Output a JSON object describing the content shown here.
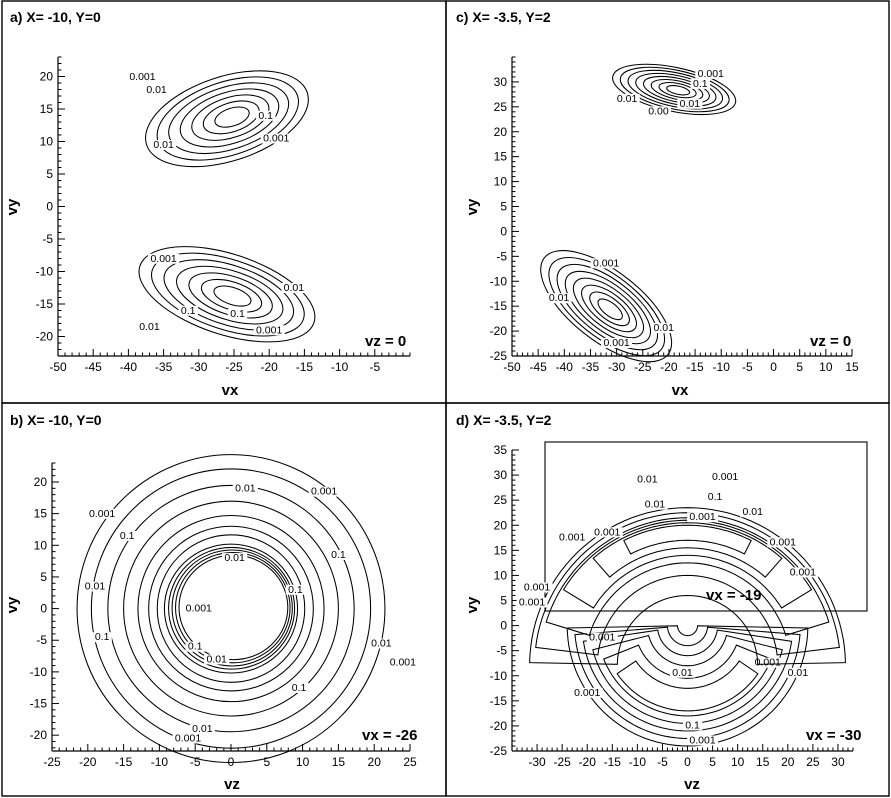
{
  "chart_data": [
    {
      "id": "a",
      "type": "contour",
      "title": "a) X= -10, Y=0",
      "xlabel": "vx",
      "ylabel": "vy",
      "xlim": [
        -50,
        0
      ],
      "ylim": [
        -23,
        23
      ],
      "xticks": [
        -50,
        -45,
        -40,
        -35,
        -30,
        -25,
        -20,
        -15,
        -10,
        -5
      ],
      "yticks": [
        -20,
        -15,
        -10,
        -5,
        0,
        5,
        10,
        15,
        20
      ],
      "annotation": "vz = 0",
      "contour_levels": [
        0.001,
        0.01,
        0.1
      ],
      "lobes": [
        {
          "cx": -26,
          "cy": 13.5,
          "rx": 12,
          "ry": 6.5,
          "tilt_deg": 18
        },
        {
          "cx": -26,
          "cy": -13.5,
          "rx": 13,
          "ry": 6.2,
          "tilt_deg": -18
        }
      ],
      "contour_labels": [
        {
          "text": "0.001",
          "x": -38,
          "y": 19.5
        },
        {
          "text": "0.01",
          "x": -36,
          "y": 17.5
        },
        {
          "text": "0.1",
          "x": -20.5,
          "y": 13.5
        },
        {
          "text": "0.01",
          "x": -35,
          "y": 9
        },
        {
          "text": "0.001",
          "x": -19,
          "y": 10
        },
        {
          "text": "0.001",
          "x": -35,
          "y": -8.5
        },
        {
          "text": "0.01",
          "x": -16.5,
          "y": -13
        },
        {
          "text": "0.1",
          "x": -31.5,
          "y": -16.5
        },
        {
          "text": "0.1",
          "x": -24.5,
          "y": -17
        },
        {
          "text": "0.01",
          "x": -37,
          "y": -19
        },
        {
          "text": "0.001",
          "x": -20,
          "y": -19.5
        }
      ]
    },
    {
      "id": "c",
      "type": "contour",
      "title": "c) X= -3.5, Y=2",
      "xlabel": "vx",
      "ylabel": "vy",
      "xlim": [
        -50,
        15
      ],
      "ylim": [
        -25,
        35
      ],
      "xticks": [
        -50,
        -45,
        -40,
        -35,
        -30,
        -25,
        -20,
        -15,
        -10,
        -5,
        0,
        5,
        10,
        15
      ],
      "yticks": [
        -25,
        -20,
        -15,
        -10,
        -5,
        0,
        5,
        10,
        15,
        20,
        25,
        30
      ],
      "annotation": "vz = 0",
      "contour_levels": [
        0.001,
        0.01,
        0.1
      ],
      "lobes": [
        {
          "cx": -19,
          "cy": 28.5,
          "rx": 12,
          "ry": 4.4,
          "tilt_deg": -12
        },
        {
          "cx": -32,
          "cy": -15,
          "rx": 15,
          "ry": 7,
          "tilt_deg": -38
        }
      ],
      "contour_labels": [
        {
          "text": "0.001",
          "x": -12,
          "y": 31
        },
        {
          "text": "0.1",
          "x": -14,
          "y": 29
        },
        {
          "text": "0.01",
          "x": -28,
          "y": 26
        },
        {
          "text": "0.00",
          "x": -22,
          "y": 23.5
        },
        {
          "text": "0.01",
          "x": -16,
          "y": 25
        },
        {
          "text": "0.001",
          "x": -32,
          "y": -7
        },
        {
          "text": "0.01",
          "x": -41,
          "y": -14
        },
        {
          "text": "0.01",
          "x": -21,
          "y": -20
        },
        {
          "text": "0.001",
          "x": -30,
          "y": -23
        }
      ]
    },
    {
      "id": "b",
      "type": "contour",
      "title": "b) X= -10, Y=0",
      "xlabel": "vz",
      "ylabel": "vy",
      "xlim": [
        -25,
        25
      ],
      "ylim": [
        -22.5,
        23
      ],
      "xticks": [
        -25,
        -20,
        -15,
        -10,
        -5,
        0,
        5,
        10,
        15,
        20,
        25
      ],
      "yticks": [
        -20,
        -15,
        -10,
        -5,
        0,
        5,
        10,
        15,
        20
      ],
      "annotation": "vx = -26",
      "contour_levels": [
        0.001,
        0.01,
        0.1
      ],
      "rings": [
        {
          "cx": 0,
          "cy": 0,
          "r_inner": 8.5,
          "r_outer": 21.5
        }
      ],
      "contour_labels": [
        {
          "text": "0.01",
          "x": 2,
          "y": 18.5
        },
        {
          "text": "0.001",
          "x": 13,
          "y": 18
        },
        {
          "text": "0.001",
          "x": -18,
          "y": 14.5
        },
        {
          "text": "0.1",
          "x": -14.5,
          "y": 11
        },
        {
          "text": "0.1",
          "x": 15,
          "y": 8
        },
        {
          "text": "0.01",
          "x": 0.5,
          "y": 7.5
        },
        {
          "text": "0.1",
          "x": 9,
          "y": 2.5
        },
        {
          "text": "0.01",
          "x": -19,
          "y": 3
        },
        {
          "text": "0.001",
          "x": -4.5,
          "y": -0.5
        },
        {
          "text": "0.1",
          "x": -18,
          "y": -5
        },
        {
          "text": "0.1",
          "x": -5,
          "y": -6.5
        },
        {
          "text": "0.01",
          "x": -2,
          "y": -8.5
        },
        {
          "text": "0.01",
          "x": 21,
          "y": -6
        },
        {
          "text": "0.001",
          "x": 24,
          "y": -9
        },
        {
          "text": "0.1",
          "x": 9.5,
          "y": -13
        },
        {
          "text": "0.01",
          "x": -4,
          "y": -19.5
        },
        {
          "text": "0.001",
          "x": -6,
          "y": -21
        }
      ]
    },
    {
      "id": "d",
      "type": "contour",
      "title": "d) X= -3.5, Y=2",
      "xlabel": "vz",
      "ylabel": "vy",
      "xlim": [
        -35,
        33
      ],
      "ylim": [
        -25,
        35
      ],
      "xticks": [
        -30,
        -25,
        -20,
        -15,
        -10,
        -5,
        0,
        5,
        10,
        15,
        20,
        25,
        30
      ],
      "yticks": [
        -25,
        -20,
        -15,
        -10,
        -5,
        0,
        5,
        10,
        15,
        20,
        25,
        30,
        35
      ],
      "annotation": "vx = -30",
      "inset_annotation": "vx = -19",
      "contour_levels": [
        0.001,
        0.01,
        0.1
      ],
      "lower_arcs": {
        "cx": 0,
        "cy": 0,
        "r_outer": 24,
        "r_inner": 5
      },
      "upper_arcs": {
        "cx": 0,
        "cy": 0,
        "r_outer": 31,
        "r_inner": 21
      },
      "contour_labels": [
        {
          "text": "0.01",
          "x": -8,
          "y": 28.5
        },
        {
          "text": "0.001",
          "x": 7.5,
          "y": 29
        },
        {
          "text": "0.1",
          "x": 5.5,
          "y": 25
        },
        {
          "text": "0.01",
          "x": -6.5,
          "y": 23.5
        },
        {
          "text": "0.001",
          "x": 3,
          "y": 21
        },
        {
          "text": "0.001",
          "x": -23,
          "y": 17
        },
        {
          "text": "0.001",
          "x": -16,
          "y": 18
        },
        {
          "text": "0.01",
          "x": 13,
          "y": 22
        },
        {
          "text": "0.001",
          "x": 19,
          "y": 16
        },
        {
          "text": "0.001",
          "x": 23,
          "y": 10
        },
        {
          "text": "0.001",
          "x": -30,
          "y": 7
        },
        {
          "text": "0.001",
          "x": -31,
          "y": 4
        },
        {
          "text": "0.001",
          "x": -17,
          "y": -3
        },
        {
          "text": "0.001",
          "x": 16,
          "y": -8
        },
        {
          "text": "0.01",
          "x": -1,
          "y": -10
        },
        {
          "text": "0.01",
          "x": 22,
          "y": -10
        },
        {
          "text": "0.001",
          "x": -20,
          "y": -14
        },
        {
          "text": "0.1",
          "x": 1,
          "y": -20.5
        },
        {
          "text": "0.001",
          "x": 3,
          "y": -23.5
        }
      ]
    }
  ]
}
